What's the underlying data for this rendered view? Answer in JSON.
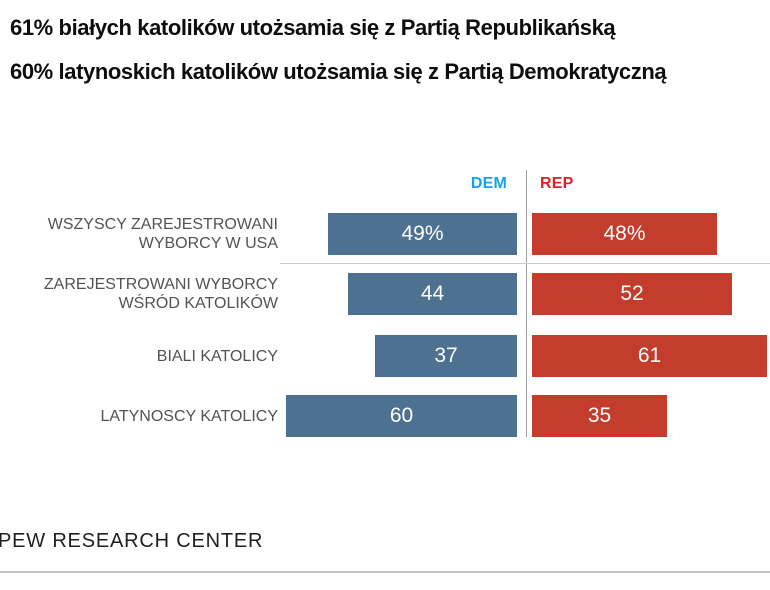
{
  "header": {
    "title_line1": "61% białych katolików utożsamia się z Partią Republikańską",
    "title_line2": "60% latynoskich katolików utożsamia się z Partią Demokratyczną"
  },
  "chart_data": {
    "type": "bar",
    "variant": "diverging-horizontal",
    "legend_position": "top",
    "grid": false,
    "xlim": [
      0,
      65
    ],
    "unit": "percent",
    "categories": [
      "WSZYSCY ZAREJESTROWANI WYBORCY W USA",
      "ZAREJESTROWANI WYBORCY WŚRÓD KATOLIKÓW",
      "BIALI KATOLICY",
      "LATYNOSCY KATOLICY"
    ],
    "category_lines": [
      [
        "WSZYSCY ZAREJESTROWANI",
        "WYBORCY W USA"
      ],
      [
        "ZAREJESTROWANI WYBORCY",
        "WŚRÓD KATOLIKÓW"
      ],
      [
        "BIALI KATOLICY"
      ],
      [
        "LATYNOSCY KATOLICY"
      ]
    ],
    "series": [
      {
        "name": "DEM",
        "bar_color": "#4d7190",
        "header_color": "#16a2ea",
        "values": [
          49,
          44,
          37,
          60
        ],
        "value_labels": [
          "49%",
          "44",
          "37",
          "60"
        ]
      },
      {
        "name": "REP",
        "bar_color": "#c43c2c",
        "header_color": "#d82327",
        "values": [
          48,
          52,
          61,
          35
        ],
        "value_labels": [
          "48%",
          "52",
          "61",
          "35"
        ]
      }
    ]
  },
  "footer": {
    "source_label": "PEW RESEARCH CENTER"
  }
}
